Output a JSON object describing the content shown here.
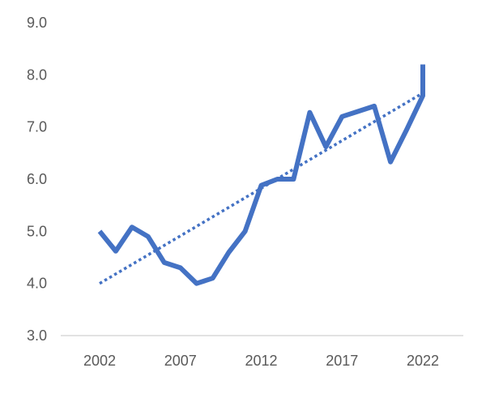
{
  "chart_data": {
    "type": "line",
    "title": "",
    "xlabel": "",
    "ylabel": "",
    "ylim": [
      3.0,
      9.0
    ],
    "yticks": [
      "3.0",
      "4.0",
      "5.0",
      "6.0",
      "7.0",
      "8.0",
      "9.0"
    ],
    "xticks": [
      "2002",
      "2007",
      "2012",
      "2017",
      "2022"
    ],
    "grid": false,
    "legend": "none",
    "series": [
      {
        "color": "#4472c4",
        "style": "solid",
        "x": [
          2002,
          2003,
          2004,
          2005,
          2006,
          2007,
          2008,
          2009,
          2010,
          2011,
          2012,
          2013,
          2014,
          2015,
          2016,
          2017,
          2018,
          2019,
          2020,
          2021,
          2022,
          2022
        ],
        "y": [
          5.0,
          4.62,
          5.08,
          4.9,
          4.4,
          4.3,
          4.0,
          4.1,
          4.6,
          5.0,
          5.88,
          6.0,
          6.0,
          7.28,
          6.62,
          7.2,
          7.3,
          7.4,
          6.33,
          6.95,
          7.6,
          8.2
        ]
      },
      {
        "color": "#4472c4",
        "style": "dotted",
        "x": [
          2002,
          2022
        ],
        "y": [
          4.0,
          7.65
        ]
      }
    ]
  }
}
